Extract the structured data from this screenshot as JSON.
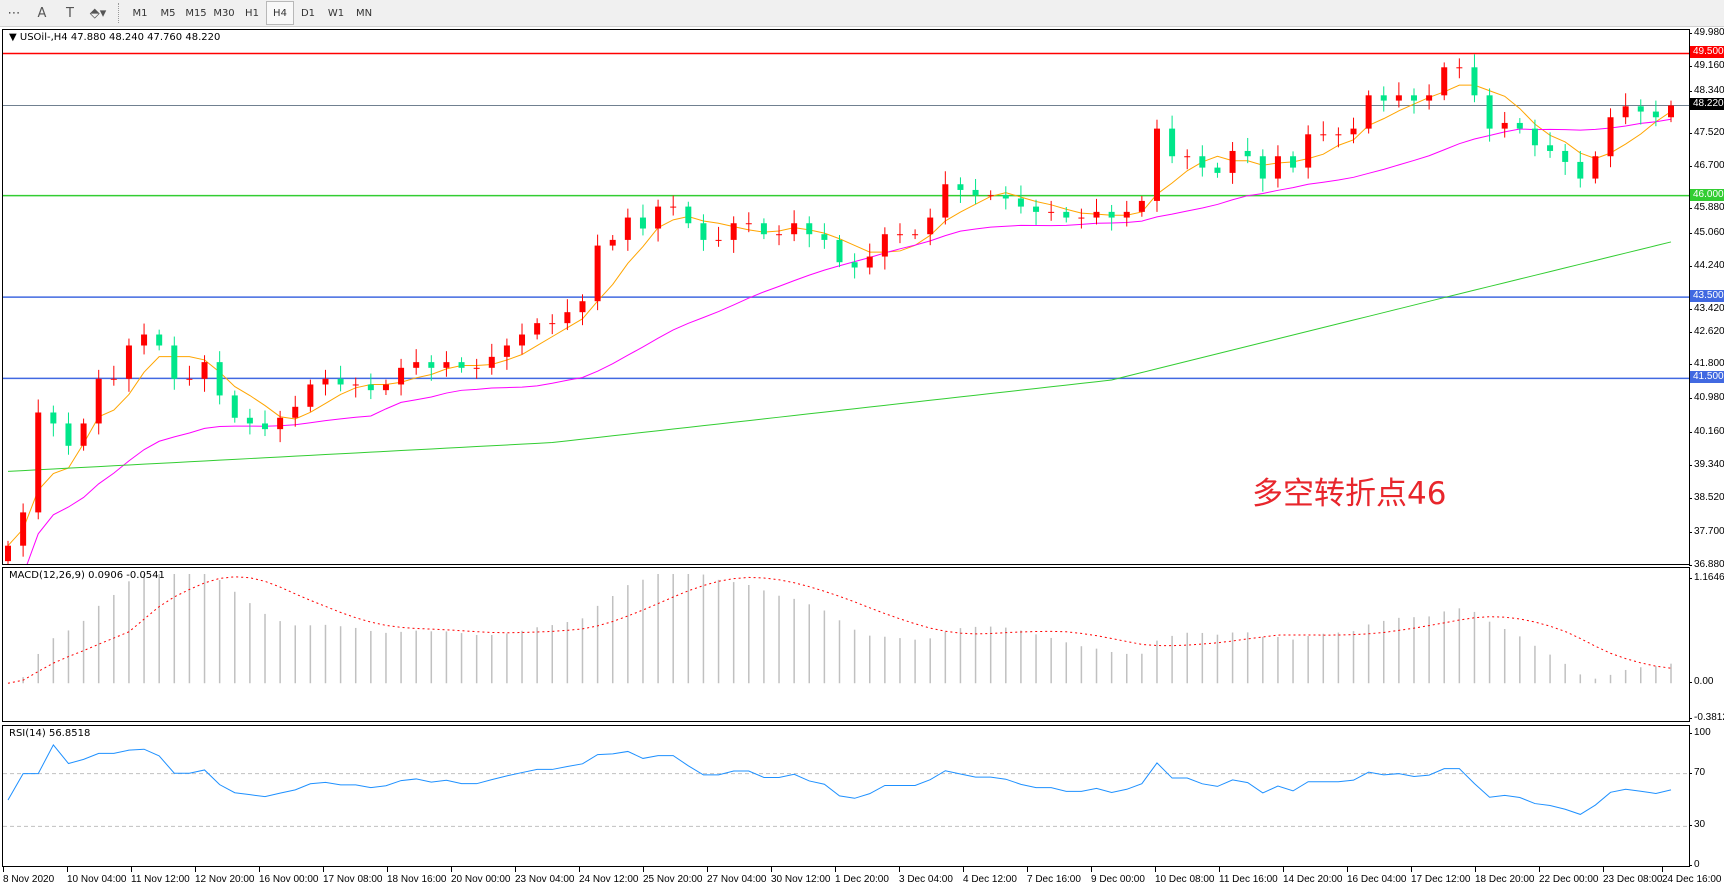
{
  "toolbar": {
    "icons": [
      "grid-lines-icon",
      "text-A-icon",
      "text-label-icon",
      "arrows-icon"
    ],
    "timeframes": [
      "M1",
      "M5",
      "M15",
      "M30",
      "H1",
      "H4",
      "D1",
      "W1",
      "MN"
    ],
    "active_timeframe": "H4"
  },
  "main": {
    "header": "USOil-,H4  47.880 48.240 47.760 48.220",
    "annotation": "多空转折点46",
    "price_ticks": [
      "49.980",
      "49.160",
      "48.340",
      "47.520",
      "46.700",
      "45.880",
      "45.060",
      "44.240",
      "43.420",
      "42.620",
      "41.800",
      "40.980",
      "40.160",
      "39.340",
      "38.520",
      "37.700",
      "36.880"
    ],
    "ylim": [
      36.88,
      49.98
    ],
    "levels": [
      {
        "value": 49.5,
        "label": "49.500",
        "color": "#ff0000"
      },
      {
        "value": 48.22,
        "label": "48.220",
        "color": "#708090",
        "current": true
      },
      {
        "value": 46.0,
        "label": "46.000",
        "color": "#32cd32"
      },
      {
        "value": 43.5,
        "label": "43.500",
        "color": "#4169e1"
      },
      {
        "value": 41.5,
        "label": "41.500",
        "color": "#4169e1"
      }
    ],
    "bull_color": "#ff0000",
    "bear_color": "#00e68a",
    "first_open": 37.0,
    "closes": [
      37.38,
      38.2,
      40.66,
      40.39,
      39.84,
      40.39,
      41.49,
      41.49,
      42.31,
      42.58,
      42.31,
      41.49,
      41.49,
      41.9,
      41.08,
      40.53,
      40.39,
      40.25,
      40.53,
      40.8,
      41.35,
      41.49,
      41.35,
      41.35,
      41.21,
      41.35,
      41.76,
      41.9,
      41.76,
      41.9,
      41.76,
      41.76,
      42.03,
      42.31,
      42.58,
      42.86,
      42.86,
      43.13,
      43.4,
      44.77,
      44.91,
      45.46,
      45.19,
      45.73,
      45.73,
      45.32,
      44.91,
      44.91,
      45.32,
      45.32,
      45.05,
      45.05,
      45.32,
      45.05,
      44.91,
      44.36,
      44.23,
      44.5,
      45.05,
      45.05,
      45.05,
      45.46,
      46.28,
      46.14,
      46.01,
      46.01,
      45.93,
      45.73,
      45.6,
      45.6,
      45.46,
      45.46,
      45.6,
      45.46,
      45.6,
      45.87,
      47.65,
      46.97,
      46.97,
      46.69,
      46.56,
      47.1,
      46.97,
      46.42,
      46.97,
      46.69,
      47.51,
      47.51,
      47.51,
      47.65,
      48.47,
      48.34,
      48.47,
      48.34,
      48.47,
      49.16,
      49.16,
      48.47,
      47.65,
      47.79,
      47.65,
      47.24,
      47.1,
      46.83,
      46.42,
      46.97,
      47.93,
      48.2,
      48.07,
      47.93,
      48.22
    ],
    "ma_fast_color": "#ffa500",
    "ma_mid_color": "#ff00ff",
    "ma_slow_color": "#32cd32",
    "ma_slow_points": [
      [
        0,
        39.21
      ],
      [
        36,
        39.92
      ],
      [
        73,
        41.46
      ],
      [
        95,
        43.49
      ],
      [
        110,
        44.86
      ]
    ]
  },
  "macd": {
    "label": "MACD(12,26,9) 0.0906 -0.0541",
    "ticks": [
      "1.1646",
      "0.00",
      "-0.3812"
    ],
    "ylim": [
      -0.3812,
      1.1646
    ],
    "hist_color": "#c0c0c0",
    "signal_color": "#ff0000"
  },
  "rsi": {
    "label": "RSI(14) 56.8518",
    "ticks": [
      "100",
      "70",
      "30",
      "0"
    ],
    "line_color": "#1e90ff"
  },
  "time_axis": [
    "8 Nov 2020",
    "10 Nov 04:00",
    "11 Nov 12:00",
    "12 Nov 20:00",
    "16 Nov 00:00",
    "17 Nov 08:00",
    "18 Nov 16:00",
    "20 Nov 00:00",
    "23 Nov 04:00",
    "24 Nov 12:00",
    "25 Nov 20:00",
    "27 Nov 04:00",
    "30 Nov 12:00",
    "1 Dec 20:00",
    "3 Dec 04:00",
    "4 Dec 12:00",
    "7 Dec 16:00",
    "9 Dec 00:00",
    "10 Dec 08:00",
    "11 Dec 16:00",
    "14 Dec 20:00",
    "16 Dec 04:00",
    "17 Dec 12:00",
    "18 Dec 20:00",
    "22 Dec 00:00",
    "23 Dec 08:00",
    "24 Dec 16:00"
  ]
}
